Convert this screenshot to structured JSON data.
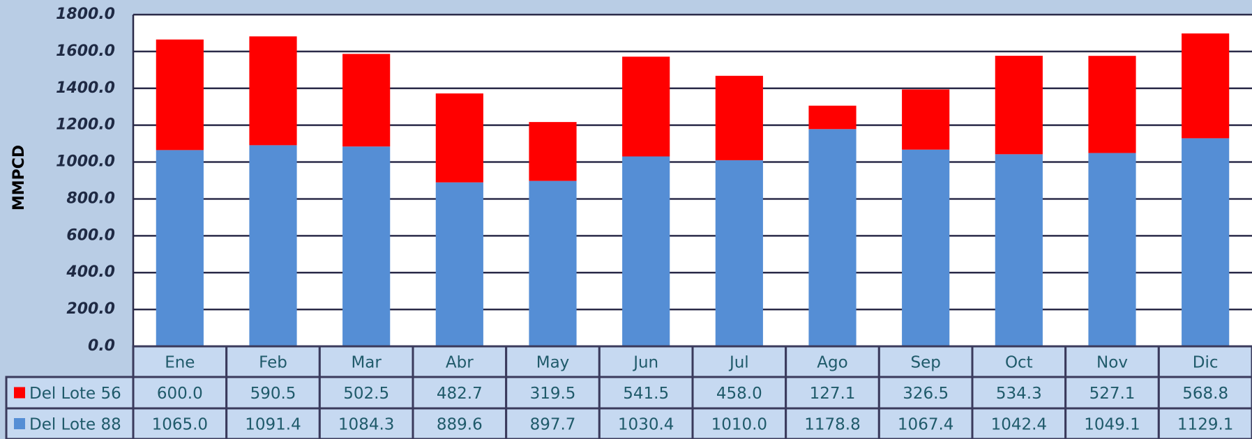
{
  "chart_data": {
    "type": "stacked_bar",
    "y_label": "MMPCD",
    "categories": [
      "Ene",
      "Feb",
      "Mar",
      "Abr",
      "May",
      "Jun",
      "Jul",
      "Ago",
      "Sep",
      "Oct",
      "Nov",
      "Dic"
    ],
    "series": [
      {
        "name": "Del Lote 56",
        "color": "#ff0000",
        "values": [
          600.0,
          590.5,
          502.5,
          482.7,
          319.5,
          541.5,
          458.0,
          127.1,
          326.5,
          534.3,
          527.1,
          568.8
        ],
        "value_labels": [
          "600.0",
          "590.5",
          "502.5",
          "482.7",
          "319.5",
          "541.5",
          "458.0",
          "127.1",
          "326.5",
          "534.3",
          "527.1",
          "568.8"
        ]
      },
      {
        "name": "Del Lote 88",
        "color": "#558ed5",
        "values": [
          1065.0,
          1091.4,
          1084.3,
          889.6,
          897.7,
          1030.4,
          1010.0,
          1178.8,
          1067.4,
          1042.4,
          1049.1,
          1129.1
        ],
        "value_labels": [
          "1065.0",
          "1091.4",
          "1084.3",
          "889.6",
          "897.7",
          "1030.4",
          "1010.0",
          "1178.8",
          "1067.4",
          "1042.4",
          "1049.1",
          "1129.1"
        ]
      }
    ],
    "ylim": [
      0,
      1800
    ],
    "yticks": [
      {
        "value": 0,
        "label": "0.0"
      },
      {
        "value": 200,
        "label": "200.0"
      },
      {
        "value": 400,
        "label": "400.0"
      },
      {
        "value": 600,
        "label": "600.0"
      },
      {
        "value": 800,
        "label": "800.0"
      },
      {
        "value": 1000,
        "label": "1000.0"
      },
      {
        "value": 1200,
        "label": "1200.0"
      },
      {
        "value": 1400,
        "label": "1400.0"
      },
      {
        "value": 1600,
        "label": "1600.0"
      },
      {
        "value": 1800,
        "label": "1800.0"
      }
    ],
    "grid": true
  }
}
